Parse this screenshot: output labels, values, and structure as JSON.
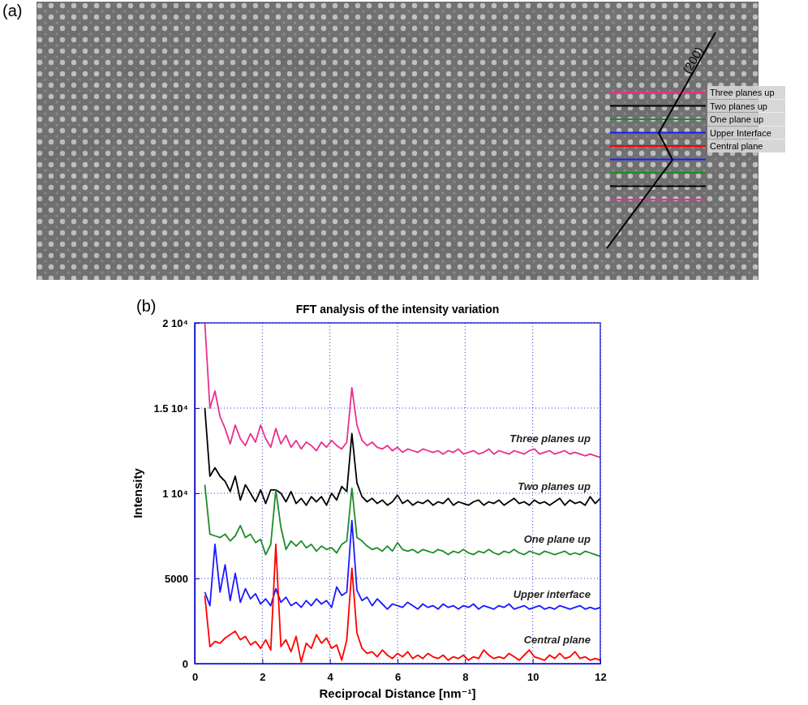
{
  "panel_a": {
    "label": "(a)",
    "direction_label": "(200)",
    "plane_labels": [
      "Three planes up",
      "Two planes up",
      "One plane up",
      "Upper Interface",
      "Central plane"
    ]
  },
  "chart_data": {
    "type": "line",
    "panel_label": "(b)",
    "title": "FFT analysis of the intensity variation",
    "x_label": "Reciprocal Distance [nm⁻¹]",
    "y_label": "Intensity",
    "xlim": [
      0,
      12
    ],
    "xticks": [
      0,
      2,
      4,
      6,
      8,
      10,
      12
    ],
    "ylim": [
      0,
      20000
    ],
    "yticks": [
      0,
      5000,
      {
        "value": 10000,
        "label": "1 10⁴"
      },
      {
        "value": 15000,
        "label": "1.5 10⁴"
      },
      {
        "value": 20000,
        "label": "2 10⁴"
      }
    ],
    "grid": true,
    "x": [
      0.3,
      0.45,
      0.6,
      0.75,
      0.9,
      1.05,
      1.2,
      1.35,
      1.5,
      1.65,
      1.8,
      1.95,
      2.1,
      2.25,
      2.4,
      2.55,
      2.7,
      2.85,
      3,
      3.15,
      3.3,
      3.45,
      3.6,
      3.75,
      3.9,
      4.05,
      4.2,
      4.35,
      4.5,
      4.65,
      4.8,
      4.95,
      5.1,
      5.25,
      5.4,
      5.55,
      5.7,
      5.85,
      6,
      6.15,
      6.3,
      6.45,
      6.6,
      6.75,
      6.9,
      7.05,
      7.2,
      7.35,
      7.5,
      7.65,
      7.8,
      7.95,
      8.1,
      8.25,
      8.4,
      8.55,
      8.7,
      8.85,
      9,
      9.15,
      9.3,
      9.45,
      9.6,
      9.75,
      9.9,
      10.05,
      10.2,
      10.35,
      10.5,
      10.65,
      10.8,
      10.95,
      11.1,
      11.25,
      11.4,
      11.55,
      11.7,
      11.85,
      12
    ],
    "series": [
      {
        "name": "Three planes up",
        "color": "#e8308f",
        "values": [
          20000,
          15000,
          16000,
          14500,
          13800,
          12900,
          14000,
          13200,
          12800,
          13500,
          13000,
          14000,
          13200,
          12700,
          13800,
          12900,
          13400,
          12700,
          13100,
          12600,
          13000,
          12800,
          12500,
          13000,
          12700,
          13100,
          12800,
          12600,
          13000,
          16200,
          14000,
          13100,
          12800,
          13000,
          12700,
          12600,
          12800,
          12500,
          12700,
          12400,
          12600,
          12500,
          12400,
          12600,
          12500,
          12400,
          12500,
          12300,
          12500,
          12400,
          12600,
          12300,
          12400,
          12500,
          12300,
          12400,
          12600,
          12300,
          12500,
          12400,
          12300,
          12500,
          12400,
          12300,
          12500,
          12600,
          12300,
          12400,
          12500,
          12300,
          12400,
          12500,
          12300,
          12400,
          12300,
          12200,
          12300,
          12200,
          12100
        ]
      },
      {
        "name": "Two planes up",
        "color": "#000000",
        "values": [
          15000,
          11000,
          11500,
          11000,
          10700,
          10100,
          11000,
          9600,
          10500,
          10000,
          9500,
          10200,
          9400,
          10200,
          10200,
          10000,
          9500,
          10100,
          9400,
          9700,
          9300,
          9800,
          9500,
          9800,
          9300,
          10000,
          9600,
          10400,
          10100,
          13500,
          10600,
          9800,
          9500,
          9700,
          9400,
          9600,
          9300,
          9500,
          9900,
          9400,
          9600,
          9300,
          9500,
          9400,
          9600,
          9300,
          9500,
          9400,
          9700,
          9300,
          9500,
          9400,
          9300,
          9500,
          9600,
          9300,
          9500,
          9400,
          9600,
          9300,
          9500,
          9700,
          9400,
          9500,
          9300,
          9600,
          9400,
          9500,
          9300,
          9500,
          9700,
          9300,
          9600,
          9400,
          9500,
          9300,
          9800,
          9400,
          9700
        ]
      },
      {
        "name": "One plane up",
        "color": "#1e8c2a",
        "values": [
          10500,
          7600,
          7500,
          7400,
          7600,
          7200,
          7500,
          8100,
          7400,
          7600,
          7100,
          7300,
          6400,
          7000,
          10200,
          8000,
          6700,
          7200,
          6900,
          7200,
          6800,
          7000,
          6600,
          6900,
          6700,
          6800,
          6500,
          7000,
          7200,
          10300,
          7400,
          7200,
          6900,
          6700,
          6800,
          6600,
          6900,
          6600,
          7100,
          6700,
          6600,
          6700,
          6500,
          6700,
          6600,
          6500,
          6700,
          6600,
          6400,
          6600,
          6500,
          6700,
          6500,
          6400,
          6600,
          6500,
          6700,
          6500,
          6400,
          6600,
          6500,
          6700,
          6500,
          6400,
          6600,
          6500,
          6400,
          6600,
          6500,
          6400,
          6500,
          6600,
          6400,
          6500,
          6400,
          6600,
          6500,
          6400,
          6300
        ]
      },
      {
        "name": "Upper interface",
        "color": "#1a1aff",
        "values": [
          4200,
          3400,
          7000,
          4200,
          5800,
          3700,
          5300,
          3600,
          4400,
          3800,
          4100,
          3500,
          3800,
          3400,
          4400,
          3600,
          3900,
          3400,
          3600,
          3300,
          3700,
          3400,
          3800,
          3500,
          3700,
          3300,
          4500,
          4000,
          4200,
          8400,
          4300,
          3700,
          3900,
          3400,
          3800,
          3500,
          3200,
          3500,
          3400,
          3300,
          3600,
          3400,
          3200,
          3500,
          3300,
          3400,
          3200,
          3500,
          3300,
          3400,
          3200,
          3400,
          3300,
          3500,
          3200,
          3400,
          3300,
          3200,
          3400,
          3300,
          3500,
          3200,
          3300,
          3400,
          3200,
          3300,
          3400,
          3200,
          3300,
          3200,
          3400,
          3300,
          3200,
          3300,
          3400,
          3200,
          3300,
          3200,
          3300
        ]
      },
      {
        "name": "Central plane",
        "color": "#ff0000",
        "values": [
          4000,
          1000,
          1300,
          1200,
          1500,
          1700,
          1900,
          1400,
          1600,
          1100,
          1300,
          900,
          1400,
          800,
          7000,
          1000,
          1400,
          700,
          1600,
          100,
          1200,
          900,
          1700,
          1200,
          1500,
          900,
          1100,
          200,
          1400,
          5600,
          1800,
          900,
          600,
          700,
          400,
          800,
          500,
          300,
          600,
          400,
          700,
          300,
          500,
          300,
          600,
          400,
          300,
          500,
          200,
          400,
          300,
          500,
          200,
          400,
          300,
          800,
          500,
          300,
          400,
          300,
          600,
          400,
          200,
          500,
          800,
          400,
          300,
          200,
          500,
          300,
          600,
          300,
          400,
          700,
          300,
          400,
          200,
          300,
          200
        ]
      }
    ]
  }
}
